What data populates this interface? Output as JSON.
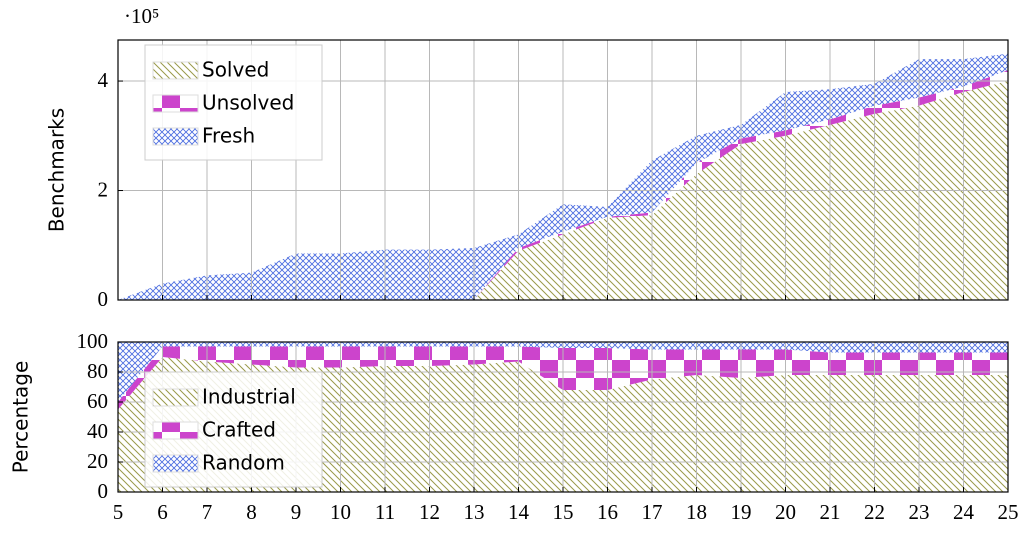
{
  "chart_data": [
    {
      "type": "area",
      "ylabel": "Benchmarks",
      "offset_label": "·10⁵",
      "x": [
        5,
        6,
        7,
        8,
        9,
        10,
        11,
        12,
        13,
        14,
        15,
        16,
        17,
        18,
        19,
        20,
        21,
        22,
        23,
        24,
        25
      ],
      "xlim": [
        5,
        25
      ],
      "xticks": [
        5,
        6,
        7,
        8,
        9,
        10,
        11,
        12,
        13,
        14,
        15,
        16,
        17,
        18,
        19,
        20,
        21,
        22,
        23,
        24,
        25
      ],
      "xtick_labels": false,
      "ylim": [
        0,
        4.75
      ],
      "yticks": [
        0,
        2,
        4
      ],
      "grid": true,
      "legend": "upper left",
      "series": [
        {
          "name": "Solved",
          "color": "#9a9a4a",
          "hatch": "diagonal",
          "values": [
            0,
            0.01,
            0.01,
            0.01,
            0.01,
            0.01,
            0.01,
            0.01,
            0.01,
            0.9,
            1.2,
            1.5,
            1.55,
            2.3,
            2.85,
            3.0,
            3.2,
            3.4,
            3.55,
            3.8,
            4.0
          ]
        },
        {
          "name": "Unsolved",
          "color": "#cc44cc",
          "hatch": "checker",
          "values": [
            0,
            0,
            0,
            0,
            0,
            0,
            0,
            0,
            0,
            0.05,
            0.05,
            0.02,
            0.05,
            0.2,
            0.1,
            0.1,
            0.1,
            0.15,
            0.15,
            0.1,
            0.2
          ]
        },
        {
          "name": "Fresh",
          "color": "#4d6ee0",
          "hatch": "crosshatch",
          "values": [
            0,
            0.29,
            0.44,
            0.49,
            0.84,
            0.84,
            0.91,
            0.91,
            0.94,
            0.25,
            0.5,
            0.18,
            0.95,
            0.5,
            0.25,
            0.7,
            0.55,
            0.4,
            0.7,
            0.5,
            0.3
          ]
        }
      ]
    },
    {
      "type": "area",
      "ylabel": "Percentage",
      "x": [
        5,
        6,
        7,
        8,
        9,
        10,
        11,
        12,
        13,
        14,
        15,
        16,
        17,
        18,
        19,
        20,
        21,
        22,
        23,
        24,
        25
      ],
      "xlim": [
        5,
        25
      ],
      "xticks": [
        5,
        6,
        7,
        8,
        9,
        10,
        11,
        12,
        13,
        14,
        15,
        16,
        17,
        18,
        19,
        20,
        21,
        22,
        23,
        24,
        25
      ],
      "xtick_labels": true,
      "ylim": [
        0,
        100
      ],
      "yticks": [
        0,
        20,
        40,
        60,
        80,
        100
      ],
      "grid": true,
      "legend": "upper left",
      "series": [
        {
          "name": "Industrial",
          "color": "#9a9a4a",
          "hatch": "diagonal",
          "values": [
            55,
            90,
            87,
            85,
            83,
            83,
            84,
            84,
            85,
            87,
            68,
            68,
            75,
            78,
            76,
            78,
            78,
            78,
            78,
            78,
            78
          ]
        },
        {
          "name": "Crafted",
          "color": "#cc44cc",
          "hatch": "checker",
          "values": [
            5,
            7,
            10,
            12,
            14,
            14,
            13,
            13,
            12,
            10,
            28,
            28,
            20,
            17,
            19,
            17,
            15,
            15,
            15,
            15,
            15
          ]
        },
        {
          "name": "Random",
          "color": "#4d6ee0",
          "hatch": "crosshatch",
          "values": [
            40,
            3,
            3,
            3,
            3,
            3,
            3,
            3,
            3,
            3,
            4,
            4,
            5,
            5,
            5,
            5,
            7,
            7,
            7,
            7,
            7
          ]
        }
      ]
    }
  ]
}
